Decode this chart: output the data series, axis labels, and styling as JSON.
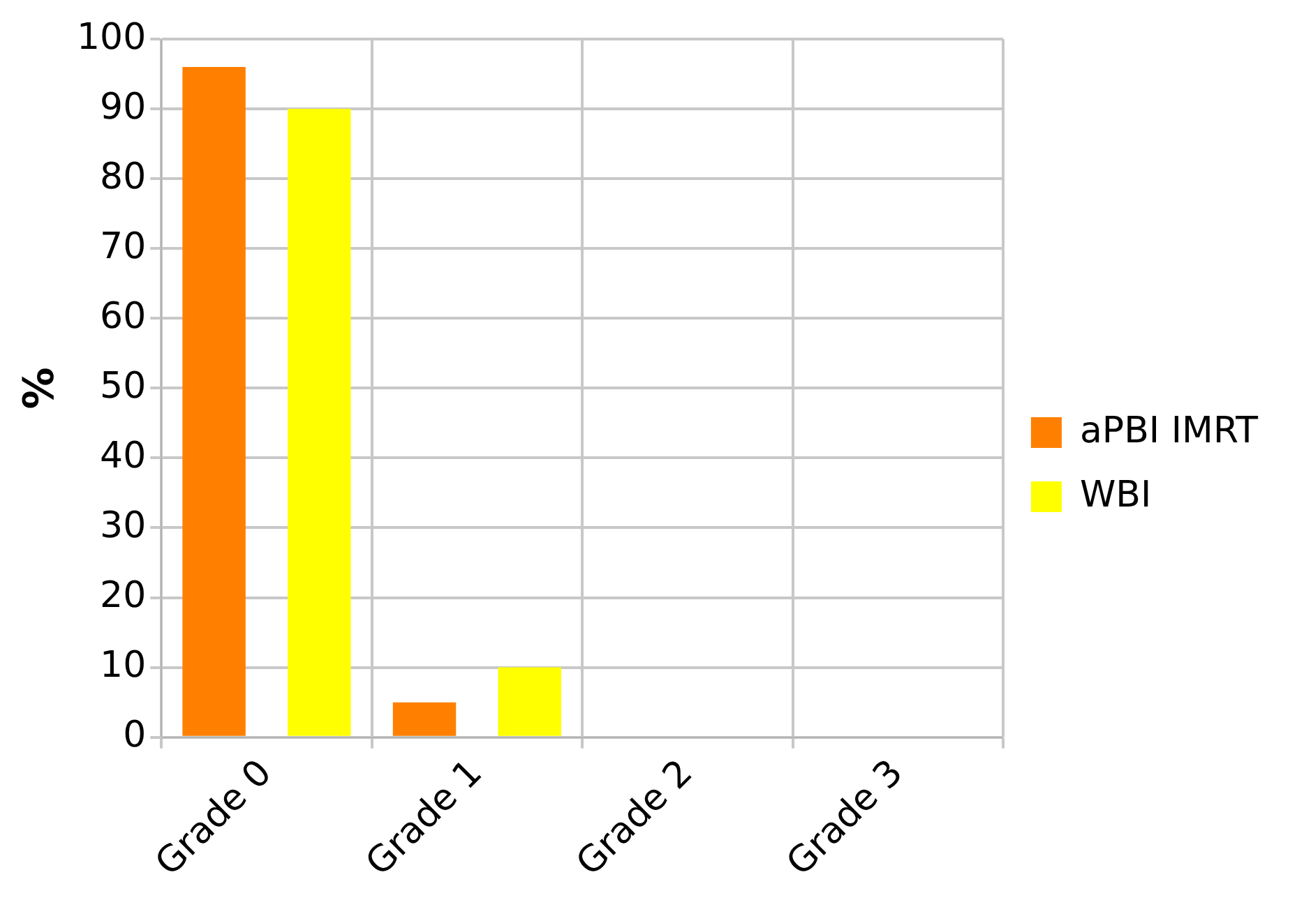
{
  "chart_data": {
    "type": "bar",
    "ylabel": "%",
    "categories": [
      "Grade 0",
      "Grade 1",
      "Grade 2",
      "Grade 3"
    ],
    "series": [
      {
        "name": "aPBI IMRT",
        "color": "#ff7f00",
        "values": [
          96,
          5,
          0,
          0
        ]
      },
      {
        "name": "WBI",
        "color": "#ffff00",
        "values": [
          90,
          10,
          0,
          0
        ]
      }
    ],
    "ylim": [
      0,
      100
    ],
    "yticks": [
      0,
      10,
      20,
      30,
      40,
      50,
      60,
      70,
      80,
      90,
      100
    ],
    "grid": true,
    "legend": "right"
  }
}
